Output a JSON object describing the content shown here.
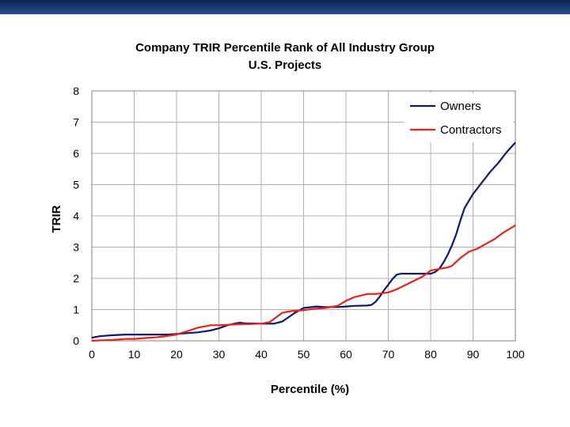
{
  "chart_data": {
    "type": "line",
    "title": "Company TRIR Percentile Rank of All Industry Group",
    "subtitle": "U.S. Projects",
    "xlabel": "Percentile (%)",
    "ylabel": "TRIR",
    "xlim": [
      0,
      100
    ],
    "ylim": [
      0,
      8
    ],
    "xticks": [
      0,
      10,
      20,
      30,
      40,
      50,
      60,
      70,
      80,
      90,
      100
    ],
    "yticks": [
      0,
      1,
      2,
      3,
      4,
      5,
      6,
      7,
      8
    ],
    "grid": true,
    "legend_position": "top-right",
    "series": [
      {
        "name": "Owners",
        "color": "#0a1a6e",
        "x": [
          0,
          2,
          5,
          8,
          10,
          15,
          18,
          20,
          25,
          28,
          30,
          32,
          34,
          35,
          36,
          40,
          43,
          45,
          48,
          50,
          53,
          55,
          58,
          60,
          62,
          65,
          66,
          67,
          68,
          69,
          70,
          71,
          72,
          73,
          75,
          78,
          80,
          81,
          82,
          83,
          84,
          85,
          86,
          87,
          88,
          90,
          92,
          94,
          96,
          98,
          100
        ],
        "y": [
          0.1,
          0.15,
          0.18,
          0.2,
          0.2,
          0.2,
          0.2,
          0.22,
          0.27,
          0.33,
          0.4,
          0.5,
          0.56,
          0.58,
          0.56,
          0.55,
          0.55,
          0.62,
          0.9,
          1.05,
          1.1,
          1.08,
          1.08,
          1.1,
          1.12,
          1.13,
          1.15,
          1.25,
          1.42,
          1.62,
          1.8,
          1.98,
          2.12,
          2.15,
          2.15,
          2.15,
          2.15,
          2.2,
          2.3,
          2.5,
          2.75,
          3.05,
          3.4,
          3.85,
          4.25,
          4.7,
          5.05,
          5.4,
          5.7,
          6.05,
          6.35
        ]
      },
      {
        "name": "Contractors",
        "color": "#e8221c",
        "x": [
          0,
          3,
          5,
          8,
          10,
          13,
          15,
          17,
          20,
          23,
          25,
          28,
          30,
          33,
          35,
          38,
          40,
          42,
          43,
          45,
          47,
          50,
          53,
          55,
          58,
          60,
          62,
          65,
          67,
          70,
          72,
          75,
          78,
          80,
          82,
          84,
          85,
          87,
          89,
          91,
          93,
          95,
          97,
          100
        ],
        "y": [
          0.0,
          0.02,
          0.03,
          0.06,
          0.06,
          0.09,
          0.11,
          0.14,
          0.2,
          0.33,
          0.42,
          0.5,
          0.5,
          0.52,
          0.53,
          0.54,
          0.55,
          0.6,
          0.7,
          0.9,
          0.95,
          0.98,
          1.03,
          1.05,
          1.12,
          1.28,
          1.4,
          1.5,
          1.5,
          1.55,
          1.65,
          1.85,
          2.05,
          2.25,
          2.3,
          2.35,
          2.4,
          2.65,
          2.85,
          2.95,
          3.1,
          3.25,
          3.45,
          3.7
        ]
      }
    ]
  }
}
